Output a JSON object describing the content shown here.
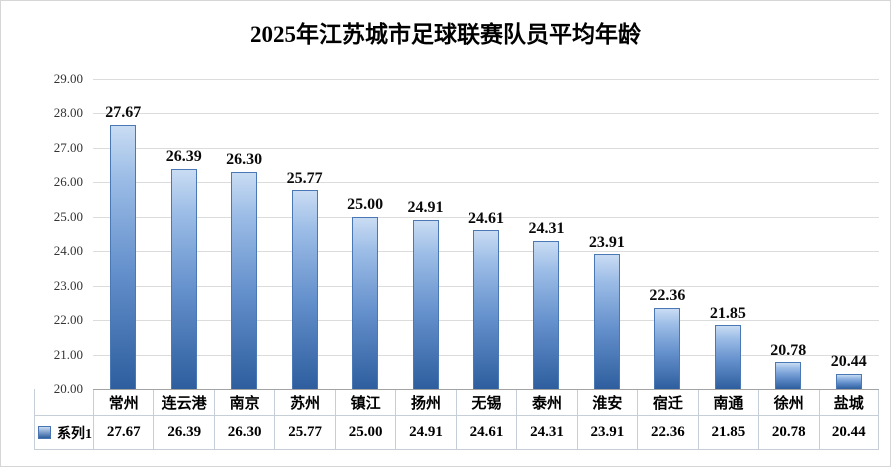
{
  "chart_data": {
    "type": "bar",
    "title": "2025年江苏城市足球联赛队员平均年龄",
    "categories": [
      "常州",
      "连云港",
      "南京",
      "苏州",
      "镇江",
      "扬州",
      "无锡",
      "泰州",
      "淮安",
      "宿迁",
      "南通",
      "徐州",
      "盐城"
    ],
    "series": [
      {
        "name": "系列1",
        "values": [
          27.67,
          26.39,
          26.3,
          25.77,
          25.0,
          24.91,
          24.61,
          24.31,
          23.91,
          22.36,
          21.85,
          20.78,
          20.44
        ]
      }
    ],
    "ylim": [
      20,
      29
    ],
    "ytick_step": 1,
    "yticks": [
      "29.00",
      "28.00",
      "27.00",
      "26.00",
      "25.00",
      "24.00",
      "23.00",
      "22.00",
      "21.00",
      "20.00"
    ],
    "value_label_format": "0.00",
    "grid": true,
    "legend_position": "data-table-left",
    "colors": {
      "bar_top": "#c9dcf3",
      "bar_bottom": "#2e5e9e",
      "bar_border": "#4a78b5",
      "gridline": "#dcdcdc",
      "axis_line": "#a3a3a3",
      "table_border": "#c6ced7"
    }
  }
}
